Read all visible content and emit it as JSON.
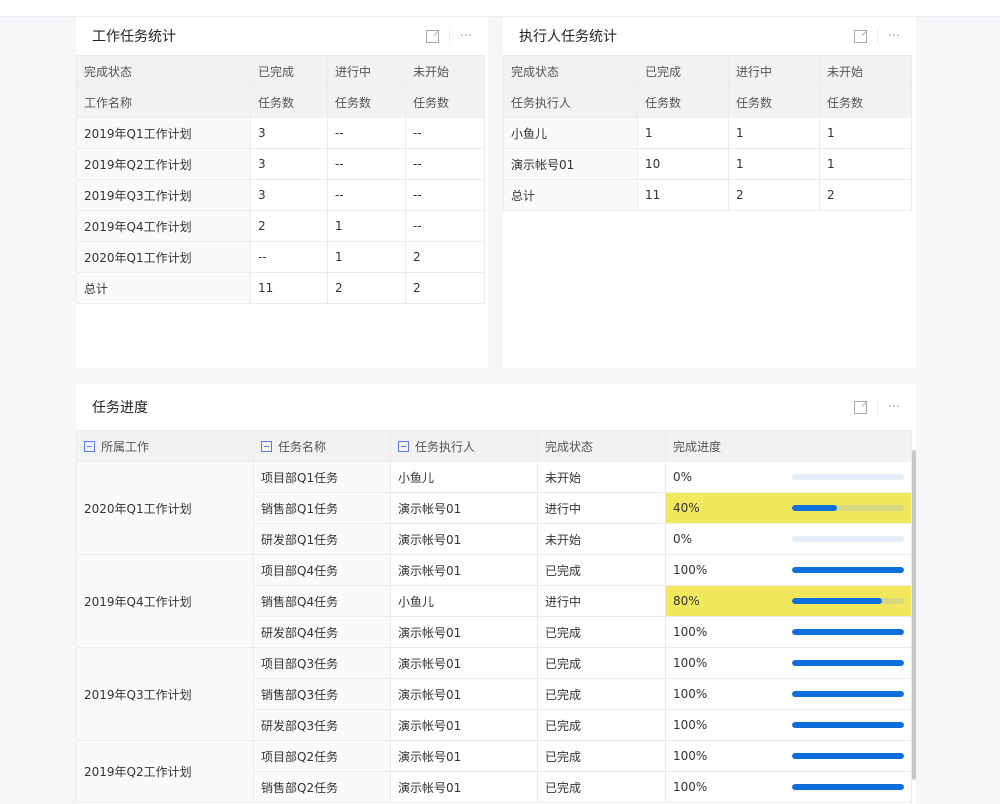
{
  "work_stats": {
    "title": "工作任务统计",
    "header1": [
      "完成状态",
      "已完成",
      "进行中",
      "未开始"
    ],
    "header2": [
      "工作名称",
      "任务数",
      "任务数",
      "任务数"
    ],
    "rows": [
      [
        "2019年Q1工作计划",
        "3",
        "--",
        "--"
      ],
      [
        "2019年Q2工作计划",
        "3",
        "--",
        "--"
      ],
      [
        "2019年Q3工作计划",
        "3",
        "--",
        "--"
      ],
      [
        "2019年Q4工作计划",
        "2",
        "1",
        "--"
      ],
      [
        "2020年Q1工作计划",
        "--",
        "1",
        "2"
      ],
      [
        "总计",
        "11",
        "2",
        "2"
      ]
    ]
  },
  "assignee_stats": {
    "title": "执行人任务统计",
    "header1": [
      "完成状态",
      "已完成",
      "进行中",
      "未开始"
    ],
    "header2": [
      "任务执行人",
      "任务数",
      "任务数",
      "任务数"
    ],
    "rows": [
      [
        "小鱼儿",
        "1",
        "1",
        "1"
      ],
      [
        "演示帐号01",
        "10",
        "1",
        "1"
      ],
      [
        "总计",
        "11",
        "2",
        "2"
      ]
    ]
  },
  "progress": {
    "title": "任务进度",
    "headers": [
      "所属工作",
      "任务名称",
      "任务执行人",
      "完成状态",
      "完成进度"
    ],
    "highlight_color": "#f2e85e",
    "bar_color": "#0e6edb",
    "groups": [
      {
        "work": "2020年Q1工作计划",
        "rows": [
          [
            "项目部Q1任务",
            "小鱼儿",
            "未开始",
            0
          ],
          [
            "销售部Q1任务",
            "演示帐号01",
            "进行中",
            40
          ],
          [
            "研发部Q1任务",
            "演示帐号01",
            "未开始",
            0
          ]
        ]
      },
      {
        "work": "2019年Q4工作计划",
        "rows": [
          [
            "项目部Q4任务",
            "演示帐号01",
            "已完成",
            100
          ],
          [
            "销售部Q4任务",
            "小鱼儿",
            "进行中",
            80
          ],
          [
            "研发部Q4任务",
            "演示帐号01",
            "已完成",
            100
          ]
        ]
      },
      {
        "work": "2019年Q3工作计划",
        "rows": [
          [
            "项目部Q3任务",
            "演示帐号01",
            "已完成",
            100
          ],
          [
            "销售部Q3任务",
            "演示帐号01",
            "已完成",
            100
          ],
          [
            "研发部Q3任务",
            "演示帐号01",
            "已完成",
            100
          ]
        ]
      },
      {
        "work": "2019年Q2工作计划",
        "rows": [
          [
            "项目部Q2任务",
            "演示帐号01",
            "已完成",
            100
          ],
          [
            "销售部Q2任务",
            "演示帐号01",
            "已完成",
            100
          ]
        ]
      }
    ]
  }
}
